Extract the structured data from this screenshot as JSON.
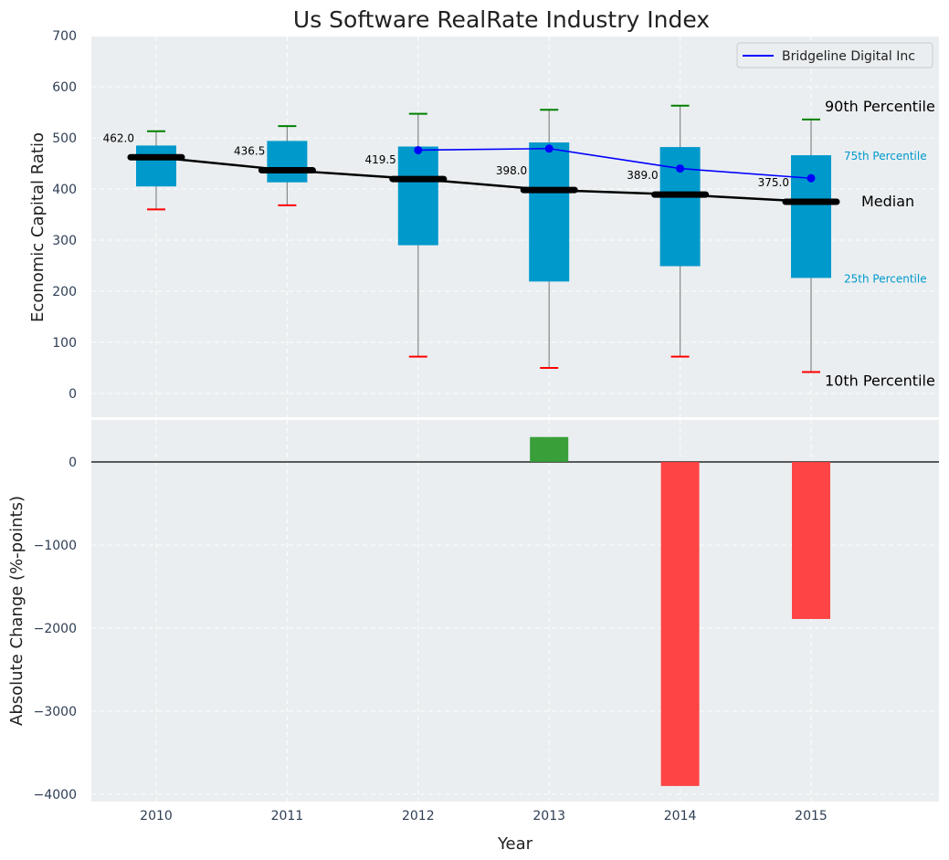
{
  "chart_data": [
    {
      "type": "box",
      "title": "Us Software RealRate Industry Index",
      "ylabel": "Economic Capital Ratio",
      "ylim": [
        -50,
        700
      ],
      "yticks": [
        0,
        100,
        200,
        300,
        400,
        500,
        600,
        700
      ],
      "categories": [
        "2010",
        "2011",
        "2012",
        "2013",
        "2014",
        "2015"
      ],
      "boxes": [
        {
          "p10": 360,
          "p25": 405,
          "median": 462.0,
          "p75": 485,
          "p90": 513,
          "median_label": "462.0"
        },
        {
          "p10": 368,
          "p25": 413,
          "median": 436.5,
          "p75": 494,
          "p90": 523,
          "median_label": "436.5"
        },
        {
          "p10": 72,
          "p25": 290,
          "median": 419.5,
          "p75": 483,
          "p90": 547,
          "median_label": "419.5"
        },
        {
          "p10": 50,
          "p25": 219,
          "median": 398.0,
          "p75": 491,
          "p90": 555,
          "median_label": "398.0"
        },
        {
          "p10": 72,
          "p25": 249,
          "median": 389.0,
          "p75": 482,
          "p90": 563,
          "median_label": "389.0"
        },
        {
          "p10": 42,
          "p25": 226,
          "median": 375.0,
          "p75": 466,
          "p90": 536,
          "median_label": "375.0"
        }
      ],
      "series": [
        {
          "name": "Bridgeline Digital Inc",
          "categories": [
            "2012",
            "2013",
            "2014",
            "2015"
          ],
          "values": [
            476,
            479,
            440,
            421
          ],
          "color": "#0000ff"
        }
      ],
      "annotations": {
        "p90": "90th Percentile",
        "p75": "75th Percentile",
        "median": "Median",
        "p25": "25th Percentile",
        "p10": "10th Percentile"
      },
      "legend": "top-right",
      "grid": true
    },
    {
      "type": "bar",
      "ylabel": "Absolute Change (%-points)",
      "xlabel": "Year",
      "ylim": [
        -4100,
        600
      ],
      "yticks": [
        0,
        -1000,
        -2000,
        -3000,
        -4000
      ],
      "ytick_labels": [
        "0",
        "−1000",
        "−2000",
        "−3000",
        "−4000"
      ],
      "categories": [
        "2010",
        "2011",
        "2012",
        "2013",
        "2014",
        "2015"
      ],
      "values": [
        0,
        0,
        0,
        300,
        -3900,
        -1890
      ],
      "grid": true
    }
  ],
  "colors": {
    "box": "#0099cc",
    "median": "#000000",
    "p90_cap": "#008000",
    "p10_cap": "#ff0000",
    "positive_bar": "#2e9a2e",
    "negative_bar": "#ff3a3a",
    "panel_bg": "#eaeef0"
  }
}
